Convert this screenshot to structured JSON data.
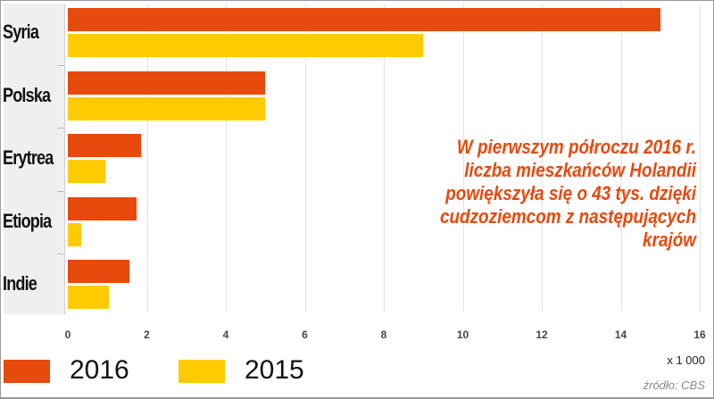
{
  "chart_data": {
    "type": "bar",
    "orientation": "horizontal",
    "categories": [
      "Syria",
      "Polska",
      "Erytrea",
      "Etiopia",
      "Indie"
    ],
    "series": [
      {
        "name": "2016",
        "color": "#e8490d",
        "values": [
          15.0,
          5.0,
          1.85,
          1.75,
          1.55
        ]
      },
      {
        "name": "2015",
        "color": "#fecb00",
        "values": [
          9.0,
          5.0,
          0.95,
          0.35,
          1.05
        ]
      }
    ],
    "xlim": [
      0,
      16
    ],
    "xticks": [
      "0",
      "2",
      "4",
      "6",
      "8",
      "10",
      "12",
      "14",
      "16"
    ],
    "xunit": "x 1 000",
    "grid": true,
    "legend_position": "bottom-left",
    "annotation": "W pierwszym półroczu 2016 r. liczba mieszkańców Holandii powiększyła się o 43 tys. dzięki cudzoziemcom z następujących krajów",
    "source": "źródło: CBS"
  },
  "labels": {
    "categories": [
      "Syria",
      "Polska",
      "Erytrea",
      "Etiopia",
      "Indie"
    ],
    "xticks": [
      "0",
      "2",
      "4",
      "6",
      "8",
      "10",
      "12",
      "14",
      "16"
    ],
    "unit": "x 1 000",
    "source": "źródło: CBS",
    "legend": [
      "2016",
      "2015"
    ],
    "annotation_lines": [
      "W pierwszym półroczu 2016 r.",
      "liczba mieszkańców Holandii",
      "powiększyła się o 43 tys. dzięki",
      "cudzoziemcom z następujących krajów"
    ]
  }
}
